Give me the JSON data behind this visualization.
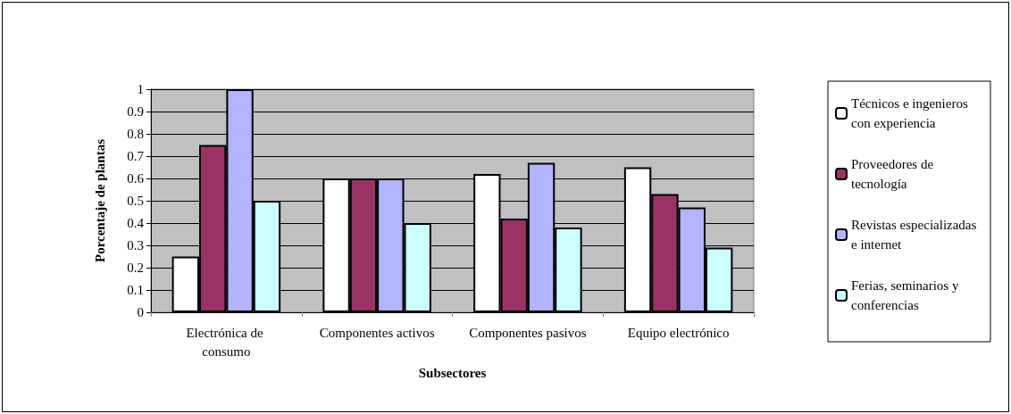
{
  "chart_data": {
    "type": "bar",
    "xlabel": "Subsectores",
    "ylabel": "Porcentaje de plantas",
    "categories": [
      "Electrónica de consumo",
      "Componentes activos",
      "Componentes pasivos",
      "Equipo electrónico"
    ],
    "series": [
      {
        "name": "Técnicos e ingenieros con experiencia",
        "color": "#ffffff",
        "values": [
          0.25,
          0.6,
          0.62,
          0.65
        ]
      },
      {
        "name": "Proveedores de tecnología",
        "color": "#993366",
        "values": [
          0.75,
          0.6,
          0.42,
          0.53
        ]
      },
      {
        "name": "Revistas especializadas e internet",
        "color": "#b3b3ff",
        "values": [
          1,
          0.6,
          0.67,
          0.47
        ]
      },
      {
        "name": "Ferias, seminarios y conferencias",
        "color": "#ccffff",
        "values": [
          0.5,
          0.4,
          0.38,
          0.29
        ]
      }
    ],
    "ylim": [
      0,
      1
    ],
    "yticks": [
      0,
      0.1,
      0.2,
      0.3,
      0.4,
      0.5,
      0.6,
      0.7,
      0.8,
      0.9,
      1
    ],
    "grid": "y",
    "legend": "right"
  }
}
